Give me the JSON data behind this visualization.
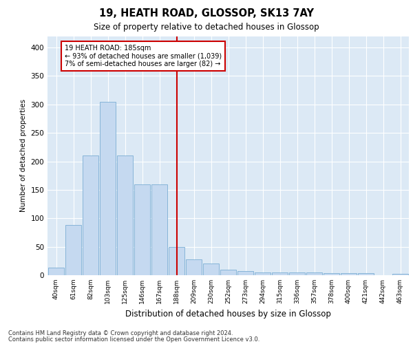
{
  "title1": "19, HEATH ROAD, GLOSSOP, SK13 7AY",
  "title2": "Size of property relative to detached houses in Glossop",
  "xlabel": "Distribution of detached houses by size in Glossop",
  "ylabel": "Number of detached properties",
  "bar_labels": [
    "40sqm",
    "61sqm",
    "82sqm",
    "103sqm",
    "125sqm",
    "146sqm",
    "167sqm",
    "188sqm",
    "209sqm",
    "230sqm",
    "252sqm",
    "273sqm",
    "294sqm",
    "315sqm",
    "336sqm",
    "357sqm",
    "378sqm",
    "400sqm",
    "421sqm",
    "442sqm",
    "463sqm"
  ],
  "bar_values": [
    13,
    88,
    210,
    305,
    210,
    160,
    160,
    50,
    28,
    20,
    10,
    7,
    5,
    5,
    5,
    5,
    4,
    4,
    4,
    0,
    3
  ],
  "bar_color": "#c5d9f0",
  "bar_edge_color": "#7aadd4",
  "highlight_index": 7,
  "highlight_line_color": "#cc0000",
  "annotation_line1": "19 HEATH ROAD: 185sqm",
  "annotation_line2": "← 93% of detached houses are smaller (1,039)",
  "annotation_line3": "7% of semi-detached houses are larger (82) →",
  "annotation_box_facecolor": "#ffffff",
  "annotation_box_edgecolor": "#cc0000",
  "ylim": [
    0,
    420
  ],
  "yticks": [
    0,
    50,
    100,
    150,
    200,
    250,
    300,
    350,
    400
  ],
  "background_color": "#dce9f5",
  "footer_line1": "Contains HM Land Registry data © Crown copyright and database right 2024.",
  "footer_line2": "Contains public sector information licensed under the Open Government Licence v3.0."
}
